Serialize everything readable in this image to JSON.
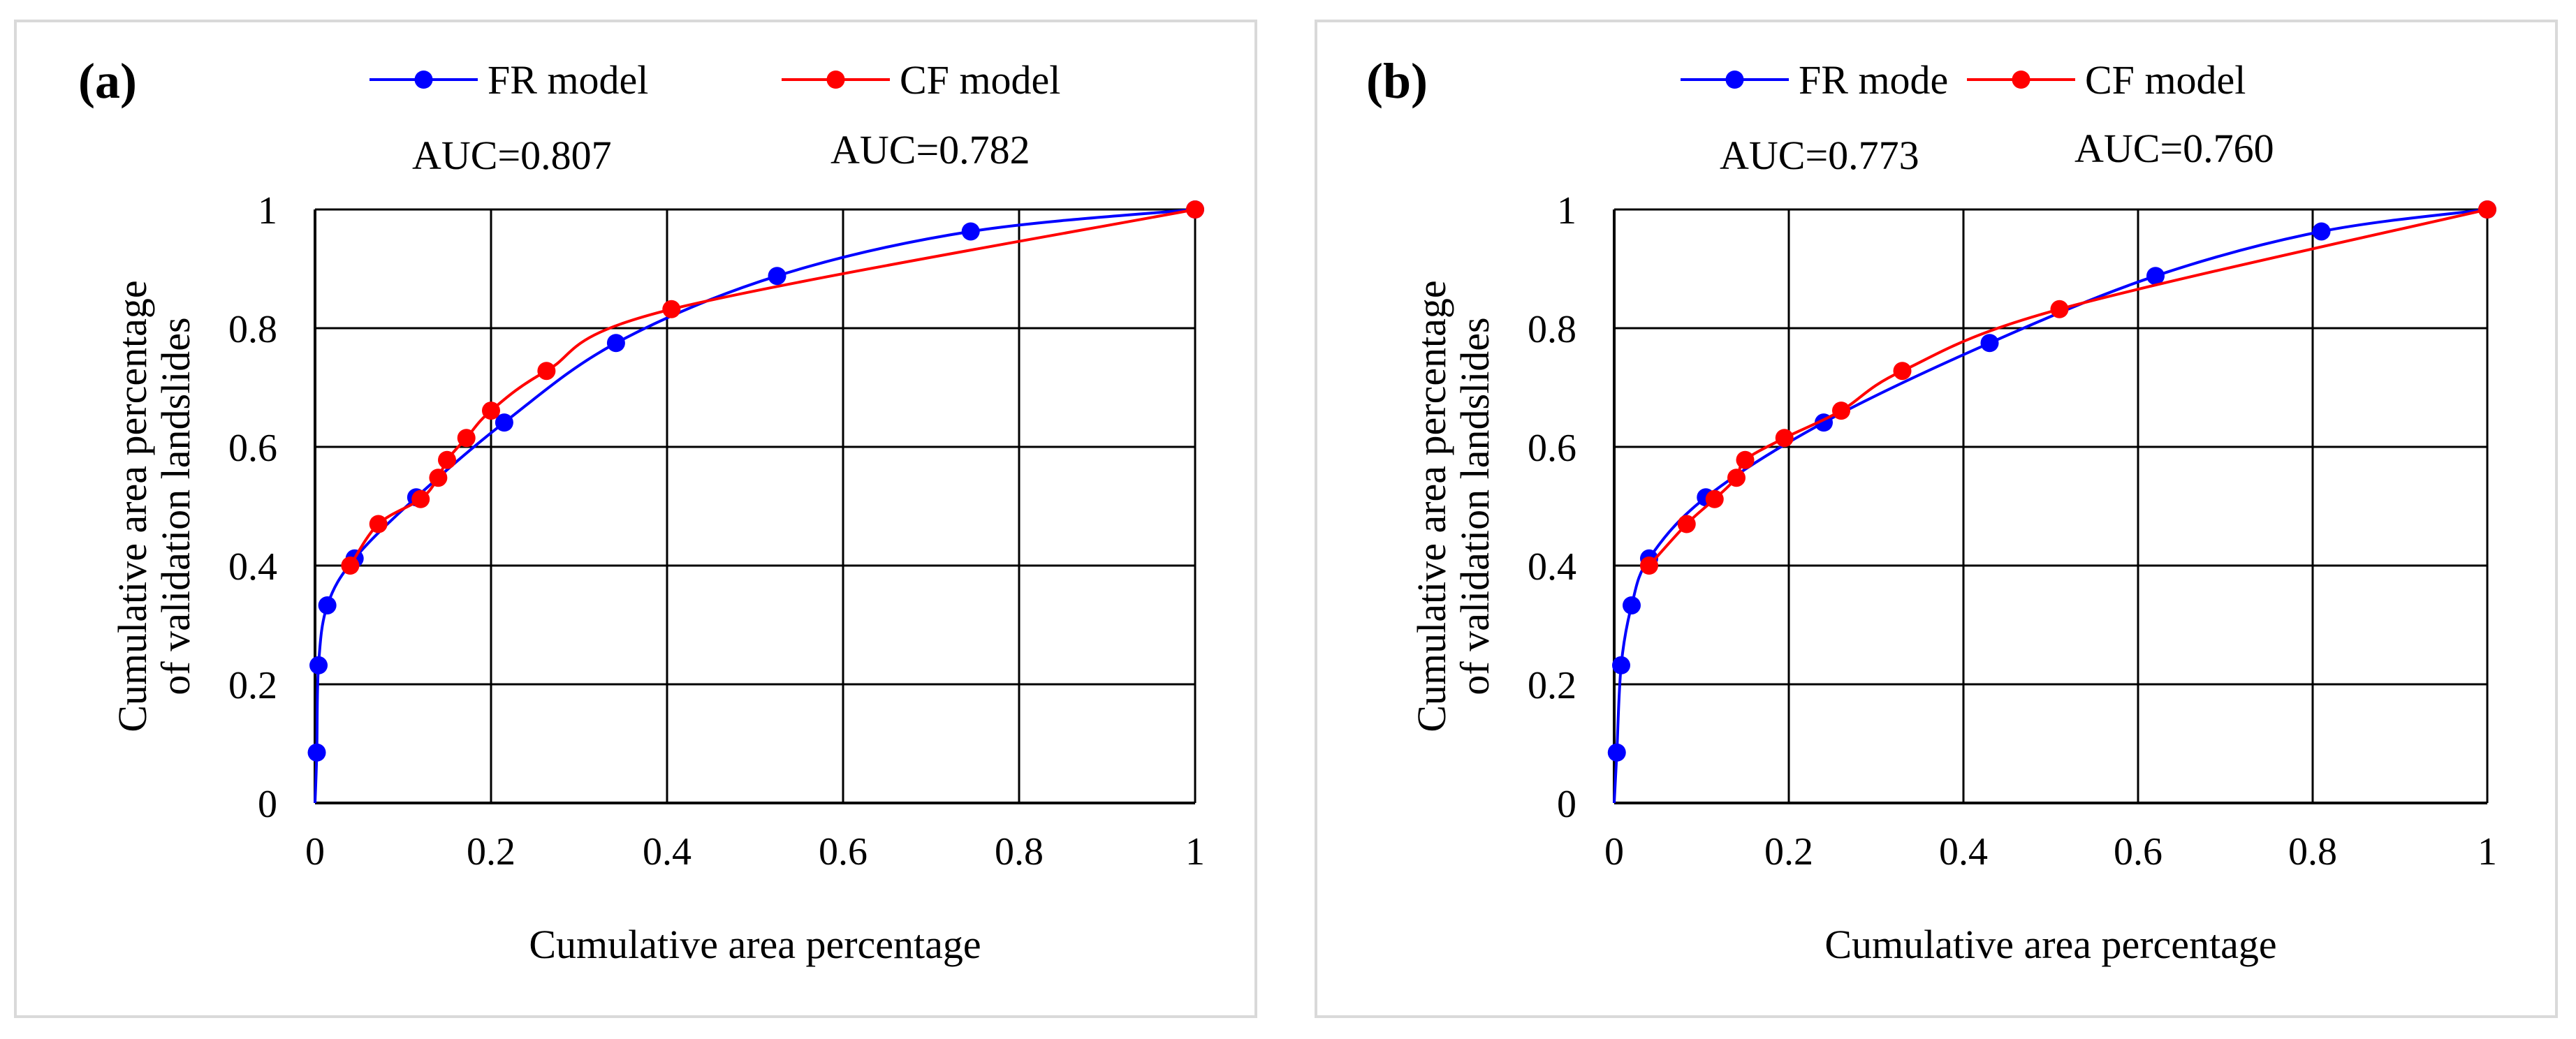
{
  "chart_data": [
    {
      "type": "line",
      "panel_label": "(a)",
      "xlabel": "Cumulative area percentage",
      "ylabel": [
        "Cumulative area percentage",
        "of validation landslides"
      ],
      "xlim": [
        0,
        1
      ],
      "ylim": [
        0,
        1
      ],
      "xticks": [
        "0",
        "0.2",
        "0.4",
        "0.6",
        "0.8",
        "1"
      ],
      "yticks": [
        "0",
        "0.2",
        "0.4",
        "0.6",
        "0.8",
        "1"
      ],
      "grid": true,
      "legend_position": "top",
      "series": [
        {
          "name": "FR model",
          "color": "#0000ff",
          "auc_label": "AUC=0.807",
          "x": [
            0,
            0.002,
            0.004,
            0.014,
            0.045,
            0.115,
            0.215,
            0.342,
            0.525,
            0.745,
            1.0
          ],
          "y": [
            0,
            0.085,
            0.232,
            0.333,
            0.412,
            0.515,
            0.641,
            0.775,
            0.888,
            0.963,
            1.0
          ]
        },
        {
          "name": "CF model",
          "color": "#ff0000",
          "auc_label": "AUC=0.782",
          "x": [
            0.04,
            0.072,
            0.12,
            0.14,
            0.15,
            0.172,
            0.2,
            0.263,
            0.405,
            1.0
          ],
          "y": [
            0.4,
            0.47,
            0.512,
            0.548,
            0.578,
            0.615,
            0.661,
            0.728,
            0.832,
            1.0
          ]
        }
      ]
    },
    {
      "type": "line",
      "panel_label": "(b)",
      "xlabel": "Cumulative area percentage",
      "ylabel": [
        "Cumulative area percentage",
        "of validation landslides"
      ],
      "xlim": [
        0,
        1
      ],
      "ylim": [
        0,
        1
      ],
      "xticks": [
        "0",
        "0.2",
        "0.4",
        "0.6",
        "0.8",
        "1"
      ],
      "yticks": [
        "0",
        "0.2",
        "0.4",
        "0.6",
        "0.8",
        "1"
      ],
      "grid": true,
      "legend_position": "top",
      "series": [
        {
          "name": "FR mode",
          "color": "#0000ff",
          "auc_label": "AUC=0.773",
          "x": [
            0,
            0.003,
            0.008,
            0.02,
            0.04,
            0.105,
            0.24,
            0.43,
            0.62,
            0.81,
            1.0
          ],
          "y": [
            0,
            0.085,
            0.232,
            0.333,
            0.412,
            0.515,
            0.641,
            0.775,
            0.888,
            0.963,
            1.0
          ]
        },
        {
          "name": "CF model",
          "color": "#ff0000",
          "auc_label": "AUC=0.760",
          "x": [
            0.04,
            0.083,
            0.115,
            0.14,
            0.15,
            0.195,
            0.26,
            0.33,
            0.51,
            1.0
          ],
          "y": [
            0.4,
            0.47,
            0.512,
            0.548,
            0.578,
            0.615,
            0.661,
            0.728,
            0.832,
            1.0
          ]
        }
      ]
    }
  ]
}
